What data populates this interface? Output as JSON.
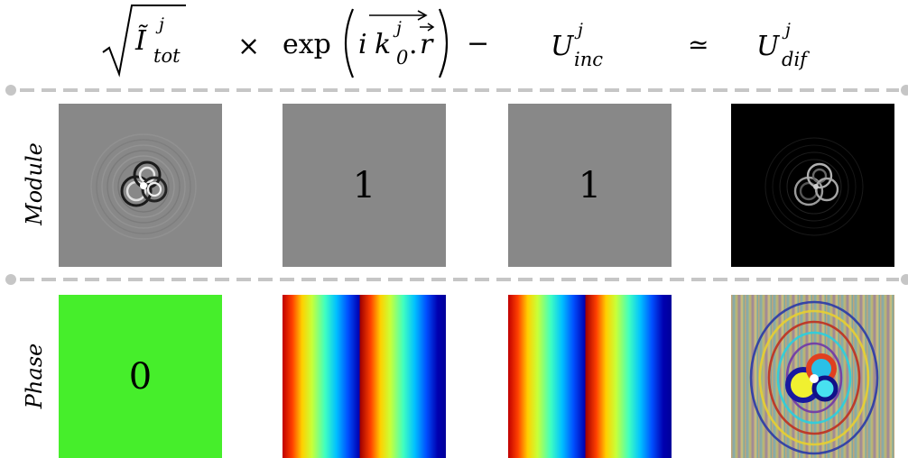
{
  "equation": {
    "term1": {
      "base": "Ĩ",
      "sup": "j",
      "sub": "tot"
    },
    "times": "×",
    "exp": {
      "func": "exp",
      "i": "i",
      "k": "k",
      "k_sup": "j",
      "k_sub": "0",
      "dot": ".",
      "r": "r"
    },
    "minus": "−",
    "term3": {
      "base": "U",
      "sup": "j",
      "sub": "inc"
    },
    "approx": "≃",
    "term4": {
      "base": "U",
      "sup": "j",
      "sub": "dif"
    }
  },
  "rows": {
    "module": {
      "label": "Module",
      "panel2_value": "1",
      "panel3_value": "1"
    },
    "phase": {
      "label": "Phase",
      "panel1_value": "0"
    }
  },
  "colors": {
    "gray_panel": "#888888",
    "green_panel": "#46ee2b",
    "divider": "#c6c6c6",
    "black_panel": "#000000"
  },
  "icons": [
    "hologram-module-image",
    "uniform-gray-image",
    "scattered-field-module-image",
    "uniform-green-image",
    "jet-colormap-stripes-image",
    "scattered-field-phase-image"
  ]
}
